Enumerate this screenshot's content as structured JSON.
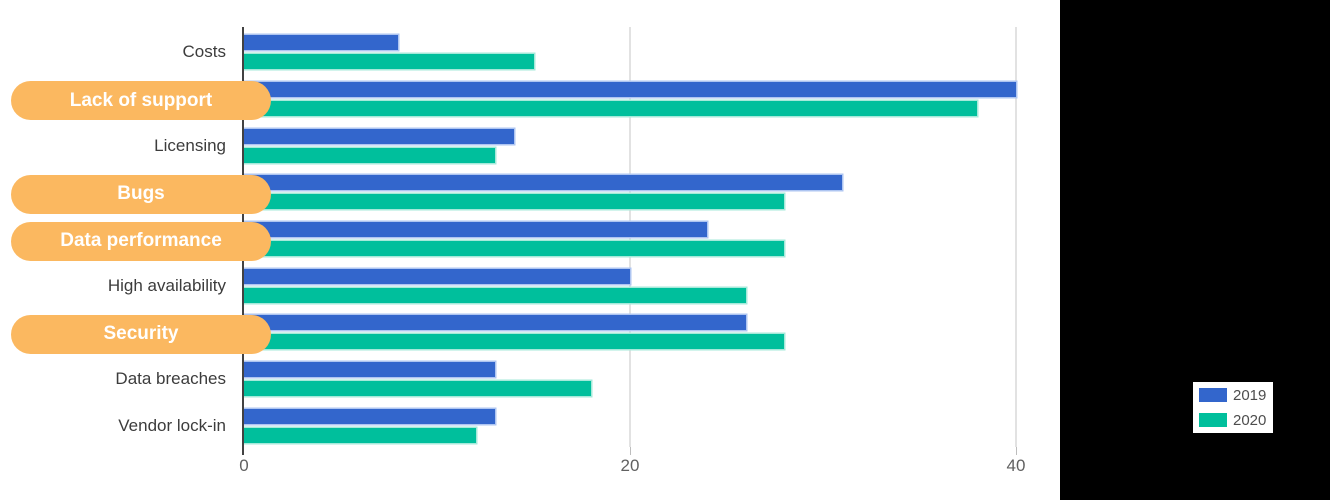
{
  "chart_data": {
    "type": "bar",
    "orientation": "horizontal",
    "title": "",
    "xlabel": "",
    "ylabel": "",
    "xlim": [
      0,
      42
    ],
    "xticks": [
      0,
      20,
      40
    ],
    "grid": true,
    "legend_position": "right",
    "categories": [
      "Costs",
      "Lack of support",
      "Licensing",
      "Bugs",
      "Data performance",
      "High availability",
      "Security",
      "Data breaches",
      "Vendor lock-in"
    ],
    "highlighted": [
      false,
      true,
      false,
      true,
      true,
      false,
      true,
      false,
      false
    ],
    "series": [
      {
        "name": "2019",
        "color": "#3366CC",
        "values": [
          8,
          40,
          14,
          31,
          24,
          20,
          26,
          13,
          13
        ]
      },
      {
        "name": "2020",
        "color": "#00BF9C",
        "values": [
          15,
          38,
          13,
          28,
          28,
          26,
          28,
          18,
          12
        ]
      }
    ]
  },
  "legend": {
    "items": [
      {
        "label": "2019",
        "color": "#3366CC"
      },
      {
        "label": "2020",
        "color": "#00BF9C"
      }
    ]
  },
  "annotations": {
    "highlight_pills": [
      "Lack of support",
      "Bugs",
      "Data performance",
      "Security"
    ],
    "pill_color": "#FBB860",
    "pill_text_color": "#FFFFFF"
  },
  "axis": {
    "tick_labels": [
      "0",
      "20",
      "40"
    ],
    "tick_label_color": "#616161",
    "axis_line_color": "#424242",
    "gridline_color": "#E2E2E2",
    "category_label_color": "#3C3C3C",
    "panel_background": "#000000",
    "chart_background": "#FFFFFF"
  }
}
